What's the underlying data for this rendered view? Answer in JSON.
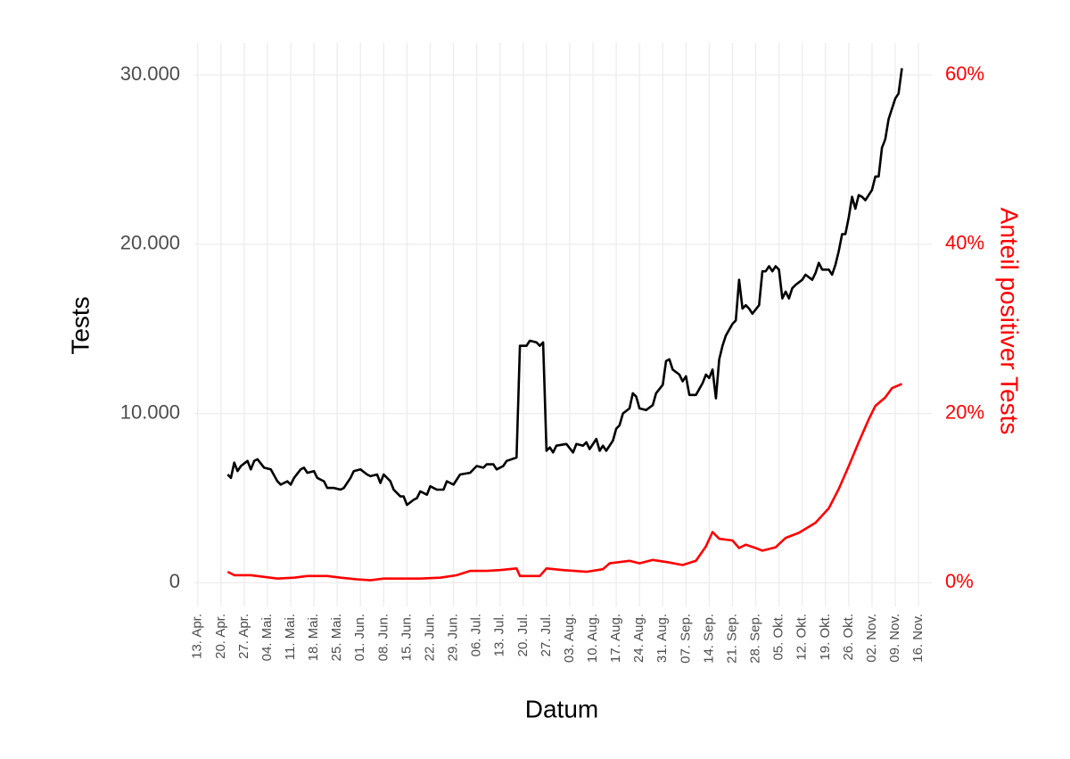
{
  "chart_data": {
    "type": "line",
    "x_label": "Datum",
    "y_label": "Tests",
    "y2_label": "Anteil positiver Tests",
    "grid": true,
    "xlim": [
      "04-12",
      "11-20"
    ],
    "xticks": [
      {
        "value": "04-13",
        "label": "13. Apr."
      },
      {
        "value": "04-20",
        "label": "20. Apr."
      },
      {
        "value": "04-27",
        "label": "27. Apr."
      },
      {
        "value": "05-04",
        "label": "04. Mai."
      },
      {
        "value": "05-11",
        "label": "11. Mai."
      },
      {
        "value": "05-18",
        "label": "18. Mai."
      },
      {
        "value": "05-25",
        "label": "25. Mai."
      },
      {
        "value": "06-01",
        "label": "01. Jun."
      },
      {
        "value": "06-08",
        "label": "08. Jun."
      },
      {
        "value": "06-15",
        "label": "15. Jun."
      },
      {
        "value": "06-22",
        "label": "22. Jun."
      },
      {
        "value": "06-29",
        "label": "29. Jun."
      },
      {
        "value": "07-06",
        "label": "06. Jul."
      },
      {
        "value": "07-13",
        "label": "13. Jul."
      },
      {
        "value": "07-20",
        "label": "20. Jul."
      },
      {
        "value": "07-27",
        "label": "27. Jul."
      },
      {
        "value": "08-03",
        "label": "03. Aug."
      },
      {
        "value": "08-10",
        "label": "10. Aug."
      },
      {
        "value": "08-17",
        "label": "17. Aug."
      },
      {
        "value": "08-24",
        "label": "24. Aug."
      },
      {
        "value": "08-31",
        "label": "31. Aug."
      },
      {
        "value": "09-07",
        "label": "07. Sep."
      },
      {
        "value": "09-14",
        "label": "14. Sep."
      },
      {
        "value": "09-21",
        "label": "21. Sep."
      },
      {
        "value": "09-28",
        "label": "28. Sep."
      },
      {
        "value": "10-05",
        "label": "05. Okt."
      },
      {
        "value": "10-12",
        "label": "12. Okt."
      },
      {
        "value": "10-19",
        "label": "19. Okt."
      },
      {
        "value": "10-26",
        "label": "26. Okt."
      },
      {
        "value": "11-02",
        "label": "02. Nov."
      },
      {
        "value": "11-09",
        "label": "09. Nov."
      },
      {
        "value": "11-16",
        "label": "16. Nov."
      }
    ],
    "ylim": [
      -1400,
      31900
    ],
    "yticks": [
      0,
      {
        "value": 10000,
        "label": "10.000"
      },
      {
        "value": 20000,
        "label": "20.000"
      },
      {
        "value": 30000,
        "label": "30.000"
      }
    ],
    "y2lim": [
      -2.8,
      63.8
    ],
    "y2ticks": [
      {
        "value": 0,
        "label": "0%"
      },
      {
        "value": 20,
        "label": "20%"
      },
      {
        "value": 40,
        "label": "40%"
      },
      {
        "value": 60,
        "label": "60%"
      }
    ],
    "y2_color": "#ff0000",
    "series": [
      {
        "color": "#000000",
        "x": [
          "04-22",
          "04-23",
          "04-24",
          "04-25",
          "04-26",
          "04-28",
          "04-29",
          "04-30",
          "05-01",
          "05-03",
          "05-05",
          "05-07",
          "05-08",
          "05-10",
          "05-11",
          "05-12",
          "05-14",
          "05-15",
          "05-16",
          "05-18",
          "05-19",
          "05-21",
          "05-22",
          "05-24",
          "05-26",
          "05-27",
          "05-29",
          "05-30",
          "06-01",
          "06-03",
          "06-04",
          "06-06",
          "06-07",
          "06-08",
          "06-10",
          "06-11",
          "06-13",
          "06-14",
          "06-15",
          "06-17",
          "06-18",
          "06-19",
          "06-21",
          "06-22",
          "06-24",
          "06-26",
          "06-27",
          "06-29",
          "07-01",
          "07-04",
          "07-06",
          "07-08",
          "07-09",
          "07-11",
          "07-12",
          "07-14",
          "07-15",
          "07-18",
          "07-19",
          "07-21",
          "07-22",
          "07-24",
          "07-25",
          "07-26",
          "07-27",
          "07-28",
          "07-29",
          "07-30",
          "08-02",
          "08-04",
          "08-05",
          "08-07",
          "08-08",
          "08-09",
          "08-11",
          "08-12",
          "08-13",
          "08-14",
          "08-16",
          "08-17",
          "08-18",
          "08-19",
          "08-21",
          "08-22",
          "08-23",
          "08-24",
          "08-26",
          "08-28",
          "08-29",
          "08-31",
          "09-01",
          "09-02",
          "09-03",
          "09-05",
          "09-06",
          "09-07",
          "09-08",
          "09-10",
          "09-12",
          "09-13",
          "09-14",
          "09-15",
          "09-16",
          "09-17",
          "09-18",
          "09-19",
          "09-21",
          "09-22",
          "09-23",
          "09-24",
          "09-25",
          "09-26",
          "09-27",
          "09-29",
          "09-30",
          "10-01",
          "10-02",
          "10-03",
          "10-04",
          "10-05",
          "10-06",
          "10-07",
          "10-08",
          "10-09",
          "10-10",
          "10-12",
          "10-13",
          "10-15",
          "10-16",
          "10-17",
          "10-18",
          "10-20",
          "10-21",
          "10-22",
          "10-23",
          "10-24",
          "10-25",
          "10-26",
          "10-27",
          "10-28",
          "10-29",
          "10-30",
          "10-31",
          "11-02",
          "11-03",
          "11-04",
          "11-05",
          "11-06",
          "11-07",
          "11-08",
          "11-09",
          "11-10",
          "11-11"
        ],
        "values": [
          6400,
          6200,
          7100,
          6600,
          6900,
          7200,
          6700,
          7200,
          7300,
          6800,
          6700,
          6000,
          5800,
          6000,
          5800,
          6200,
          6700,
          6800,
          6500,
          6600,
          6200,
          6000,
          5600,
          5600,
          5500,
          5600,
          6200,
          6600,
          6700,
          6400,
          6300,
          6400,
          5900,
          6400,
          6000,
          5500,
          5100,
          5100,
          4600,
          4900,
          5000,
          5400,
          5200,
          5700,
          5500,
          5500,
          6000,
          5800,
          6400,
          6500,
          6900,
          6800,
          7000,
          7000,
          6700,
          6900,
          7200,
          7400,
          14000,
          14000,
          14300,
          14200,
          14000,
          14200,
          7800,
          8000,
          7700,
          8100,
          8200,
          7700,
          8200,
          8100,
          8300,
          7900,
          8500,
          7800,
          8100,
          7800,
          8400,
          9100,
          9300,
          10000,
          10300,
          11200,
          11000,
          10300,
          10200,
          10500,
          11200,
          11700,
          13100,
          13200,
          12600,
          12300,
          11900,
          12200,
          11100,
          11100,
          11800,
          12300,
          12100,
          12600,
          10900,
          13200,
          14000,
          14600,
          15300,
          15500,
          17900,
          16200,
          16400,
          16200,
          15900,
          16400,
          18400,
          18400,
          18700,
          18400,
          18700,
          18500,
          16800,
          17200,
          16800,
          17400,
          17600,
          17900,
          18200,
          17900,
          18300,
          18900,
          18500,
          18500,
          18200,
          18800,
          19600,
          20600,
          20600,
          21600,
          22800,
          22100,
          22900,
          22800,
          22600,
          23200,
          24000,
          24000,
          25700,
          26200,
          27400,
          28000,
          28600,
          28900,
          30400
        ]
      },
      {
        "color": "#ff0000",
        "axis": "y2",
        "x": [
          "04-22",
          "04-24",
          "04-29",
          "05-03",
          "05-07",
          "05-12",
          "05-16",
          "05-22",
          "05-26",
          "05-31",
          "06-04",
          "06-08",
          "06-14",
          "06-19",
          "06-25",
          "06-30",
          "07-04",
          "07-09",
          "07-13",
          "07-18",
          "07-19",
          "07-25",
          "07-27",
          "08-01",
          "08-08",
          "08-13",
          "08-15",
          "08-21",
          "08-24",
          "08-28",
          "09-02",
          "09-06",
          "09-10",
          "09-13",
          "09-15",
          "09-17",
          "09-21",
          "09-23",
          "09-25",
          "09-28",
          "09-30",
          "10-04",
          "10-07",
          "10-11",
          "10-16",
          "10-20",
          "10-23",
          "10-26",
          "10-29",
          "11-01",
          "11-03",
          "11-06",
          "11-08",
          "11-11"
        ],
        "values": [
          1.3,
          0.9,
          0.9,
          0.7,
          0.5,
          0.6,
          0.8,
          0.8,
          0.6,
          0.4,
          0.3,
          0.5,
          0.5,
          0.5,
          0.6,
          0.9,
          1.4,
          1.4,
          1.5,
          1.7,
          0.8,
          0.8,
          1.7,
          1.5,
          1.3,
          1.6,
          2.3,
          2.6,
          2.3,
          2.7,
          2.4,
          2.1,
          2.6,
          4.3,
          6.0,
          5.2,
          5.0,
          4.1,
          4.5,
          4.1,
          3.8,
          4.2,
          5.3,
          5.9,
          7.1,
          8.8,
          11.1,
          13.8,
          16.6,
          19.3,
          20.9,
          21.9,
          23.0,
          23.5
        ]
      }
    ]
  }
}
